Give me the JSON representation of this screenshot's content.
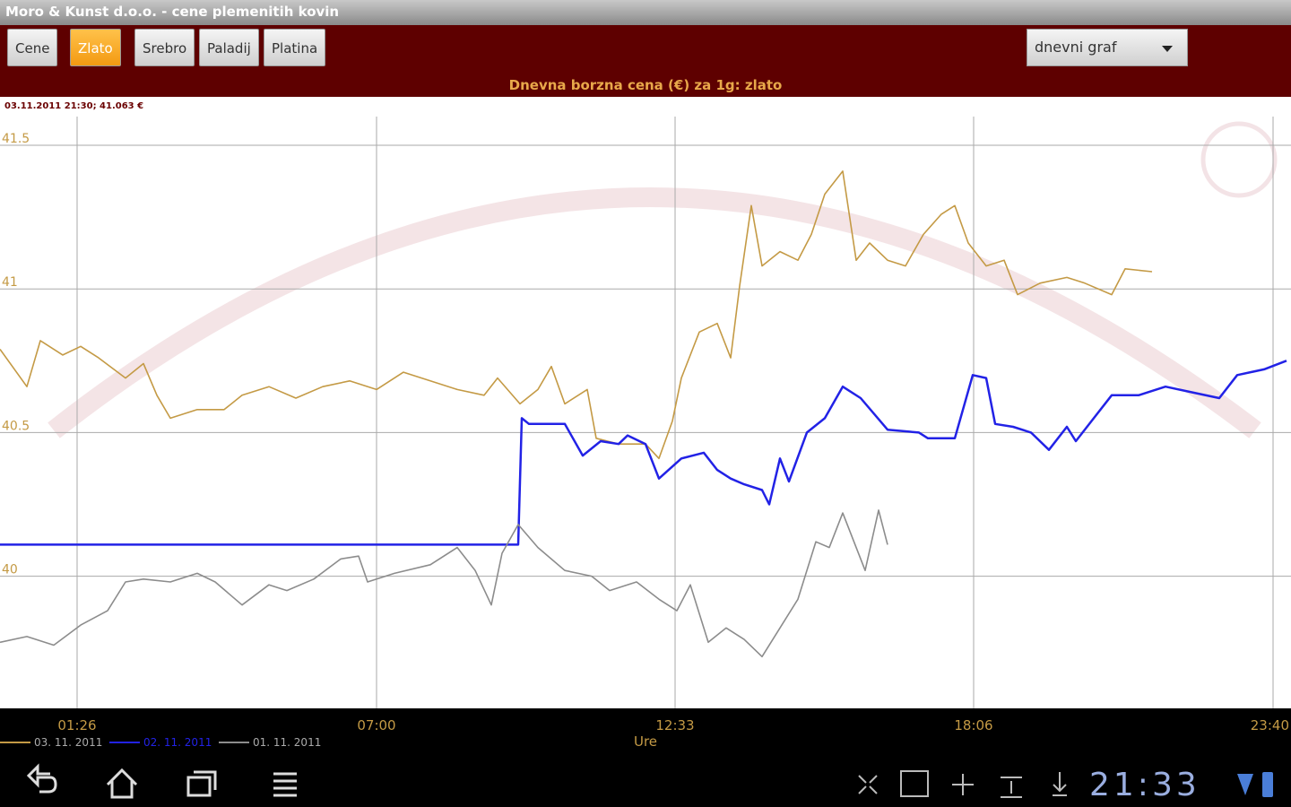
{
  "window_title": "Moro & Kunst d.o.o. - cene plemenitih kovin",
  "tabs": [
    "Cene",
    "Zlato",
    "Srebro",
    "Paladij",
    "Platina"
  ],
  "active_tab": 1,
  "dropdown": "dnevni graf",
  "info": "03.11.2011 21:30; 41.063 €",
  "clock": "21:33",
  "chart_data": {
    "type": "line",
    "title": "Dnevna borzna cena (€) za 1g: zlato",
    "x_label": "Ure",
    "xlim": [
      0,
      1440
    ],
    "xticks": [
      {
        "value": 86,
        "label": "01:26"
      },
      {
        "value": 420,
        "label": "07:00"
      },
      {
        "value": 753,
        "label": "12:33"
      },
      {
        "value": 1086,
        "label": "18:06"
      },
      {
        "value": 1420,
        "label": "23:40"
      }
    ],
    "ylim": [
      39.54,
      41.6
    ],
    "yticks": [
      40,
      40.5,
      41,
      41.5
    ],
    "grid": true,
    "series": [
      {
        "name": "03. 11. 2011",
        "color": "#c49a45",
        "x": [
          0,
          30,
          45,
          70,
          90,
          110,
          140,
          160,
          175,
          190,
          220,
          250,
          270,
          300,
          330,
          360,
          390,
          420,
          450,
          480,
          510,
          540,
          555,
          580,
          600,
          615,
          630,
          655,
          665,
          690,
          720,
          735,
          750,
          760,
          780,
          800,
          815,
          825,
          838,
          850,
          870,
          890,
          905,
          920,
          940,
          955,
          970,
          990,
          1010,
          1030,
          1050,
          1065,
          1080,
          1100,
          1120,
          1135,
          1160,
          1190,
          1210,
          1240,
          1255,
          1285
        ],
        "values": [
          40.79,
          40.66,
          40.82,
          40.77,
          40.8,
          40.76,
          40.69,
          40.74,
          40.63,
          40.55,
          40.58,
          40.58,
          40.63,
          40.66,
          40.62,
          40.66,
          40.68,
          40.65,
          40.71,
          40.68,
          40.65,
          40.63,
          40.69,
          40.6,
          40.65,
          40.73,
          40.6,
          40.65,
          40.48,
          40.46,
          40.46,
          40.41,
          40.54,
          40.69,
          40.85,
          40.88,
          40.76,
          41.01,
          41.29,
          41.08,
          41.13,
          41.1,
          41.19,
          41.33,
          41.41,
          41.1,
          41.16,
          41.1,
          41.08,
          41.19,
          41.26,
          41.29,
          41.16,
          41.08,
          41.1,
          40.98,
          41.02,
          41.04,
          41.02,
          40.98,
          41.07,
          41.06
        ]
      },
      {
        "name": "02. 11. 2011",
        "color": "#2222e6",
        "x": [
          0,
          578,
          582,
          590,
          630,
          650,
          670,
          690,
          700,
          720,
          735,
          760,
          785,
          800,
          815,
          830,
          850,
          858,
          870,
          880,
          900,
          920,
          940,
          960,
          990,
          1025,
          1035,
          1065,
          1085,
          1100,
          1110,
          1130,
          1150,
          1170,
          1190,
          1200,
          1220,
          1240,
          1270,
          1300,
          1330,
          1360,
          1380,
          1410,
          1435
        ],
        "values": [
          40.11,
          40.11,
          40.55,
          40.53,
          40.53,
          40.42,
          40.47,
          40.46,
          40.49,
          40.46,
          40.34,
          40.41,
          40.43,
          40.37,
          40.34,
          40.32,
          40.3,
          40.25,
          40.41,
          40.33,
          40.5,
          40.55,
          40.66,
          40.62,
          40.51,
          40.5,
          40.48,
          40.48,
          40.7,
          40.69,
          40.53,
          40.52,
          40.5,
          40.44,
          40.52,
          40.47,
          40.55,
          40.63,
          40.63,
          40.66,
          40.64,
          40.62,
          40.7,
          40.72,
          40.75
        ]
      },
      {
        "name": "01. 11. 2011",
        "color": "#8c8c8c",
        "x": [
          0,
          30,
          60,
          90,
          120,
          140,
          160,
          190,
          220,
          240,
          270,
          300,
          320,
          350,
          380,
          400,
          410,
          440,
          480,
          510,
          530,
          548,
          560,
          578,
          600,
          630,
          660,
          680,
          710,
          735,
          755,
          770,
          790,
          810,
          830,
          850,
          870,
          890,
          910,
          925,
          940,
          965,
          980,
          990
        ],
        "values": [
          39.77,
          39.79,
          39.76,
          39.83,
          39.88,
          39.98,
          39.99,
          39.98,
          40.01,
          39.98,
          39.9,
          39.97,
          39.95,
          39.99,
          40.06,
          40.07,
          39.98,
          40.01,
          40.04,
          40.1,
          40.02,
          39.9,
          40.08,
          40.18,
          40.1,
          40.02,
          40,
          39.95,
          39.98,
          39.92,
          39.88,
          39.97,
          39.77,
          39.82,
          39.78,
          39.72,
          39.82,
          39.92,
          40.12,
          40.1,
          40.22,
          40.02,
          40.23,
          40.11
        ]
      }
    ]
  }
}
